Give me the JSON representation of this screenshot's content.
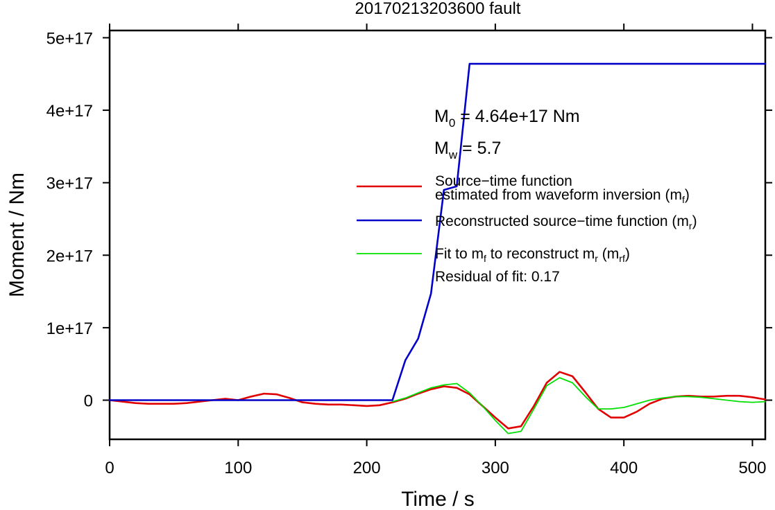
{
  "chart_data": {
    "type": "line",
    "title": "20170213203600 fault",
    "xlabel": "Time / s",
    "ylabel": "Moment / Nm",
    "xlim": [
      0,
      510
    ],
    "ylim": [
      -5.4e+16,
      5.1e+17
    ],
    "x_ticks": [
      0,
      100,
      200,
      300,
      400,
      500
    ],
    "x_tick_labels": [
      "0",
      "100",
      "200",
      "300",
      "400",
      "500"
    ],
    "y_ticks": [
      0,
      1e+17,
      2e+17,
      3e+17,
      4e+17,
      5e+17
    ],
    "y_tick_labels": [
      "0",
      "1e+17",
      "2e+17",
      "3e+17",
      "4e+17",
      "5e+17"
    ],
    "grid": false,
    "legend_position": "right",
    "annotations": {
      "m0_symbol": "M",
      "m0_sub": "0",
      "m0_value": " = 4.64e+17 Nm",
      "mw_symbol": "M",
      "mw_sub": "w",
      "mw_value": " = 5.7",
      "residual": "Residual of fit: 0.17"
    },
    "legend": [
      {
        "key": "mf",
        "color": "#e00000",
        "stroke": 2.6,
        "line1": "Source−time function",
        "line2_pre": "estimated from waveform inversion (m",
        "line2_sub": "f",
        "line2_post": ")"
      },
      {
        "key": "mr",
        "color": "#0000c8",
        "stroke": 2.6,
        "pre": "Reconstructed source−time function (m",
        "sub": "r",
        "post": ")"
      },
      {
        "key": "mrf",
        "color": "#00e000",
        "stroke": 1.8,
        "pre": "Fit to m",
        "sub1": "f",
        "mid": " to reconstruct m",
        "sub2": "r",
        "mid2": " (m",
        "sub3": "rf",
        "post": ")"
      }
    ],
    "series": [
      {
        "name": "Source−time function estimated from waveform inversion (mf)",
        "color": "#e00000",
        "x": [
          0,
          10,
          20,
          30,
          40,
          50,
          60,
          70,
          80,
          90,
          100,
          110,
          120,
          130,
          140,
          150,
          160,
          170,
          180,
          190,
          200,
          210,
          220,
          230,
          240,
          250,
          260,
          270,
          280,
          290,
          300,
          310,
          320,
          330,
          340,
          350,
          360,
          370,
          380,
          390,
          400,
          410,
          420,
          430,
          440,
          450,
          460,
          470,
          480,
          490,
          500,
          510
        ],
        "y": [
          0,
          -2000000000000000.0,
          -4000000000000000.0,
          -5000000000000000.0,
          -5000000000000000.0,
          -5000000000000000.0,
          -4000000000000000.0,
          -2000000000000000.0,
          0,
          2000000000000000.0,
          0,
          5000000000000000.0,
          9000000000000000.0,
          8000000000000000.0,
          3000000000000000.0,
          -3000000000000000.0,
          -5000000000000000.0,
          -6000000000000000.0,
          -6000000000000000.0,
          -7000000000000000.0,
          -8000000000000000.0,
          -7000000000000000.0,
          -3000000000000000.0,
          2000000000000000.0,
          9000000000000000.0,
          1.5e+16,
          1.9e+16,
          1.7e+16,
          8000000000000000.0,
          -8000000000000000.0,
          -2.4e+16,
          -3.9e+16,
          -3.6e+16,
          -8000000000000000.0,
          2.4e+16,
          3.9e+16,
          3.3e+16,
          1.1e+16,
          -1.2e+16,
          -2.4e+16,
          -2.4e+16,
          -1.6e+16,
          -5000000000000000.0,
          2000000000000000.0,
          5000000000000000.0,
          6000000000000000.0,
          5000000000000000.0,
          5000000000000000.0,
          6000000000000000.0,
          6000000000000000.0,
          4000000000000000.0,
          1000000000000000.0
        ]
      },
      {
        "name": "Reconstructed source−time function (mr)",
        "color": "#0000c8",
        "x": [
          0,
          220,
          230,
          240,
          250,
          260,
          270,
          280,
          510
        ],
        "y": [
          0,
          0,
          5.5e+16,
          8.5e+16,
          1.47e+17,
          2.9e+17,
          2.95e+17,
          4.64e+17,
          4.64e+17
        ]
      },
      {
        "name": "Fit to mf to reconstruct mr (mrf)",
        "color": "#00e000",
        "x": [
          220,
          230,
          240,
          250,
          260,
          270,
          280,
          290,
          300,
          310,
          320,
          330,
          340,
          350,
          360,
          370,
          380,
          390,
          400,
          410,
          420,
          430,
          440,
          450,
          460,
          470,
          480,
          490,
          500,
          510
        ],
        "y": [
          -2000000000000000.0,
          3000000000000000.0,
          1e+16,
          1.7e+16,
          2.1e+16,
          2.3e+16,
          1e+16,
          -8000000000000000.0,
          -2.8e+16,
          -4.6e+16,
          -4.3e+16,
          -1.2e+16,
          2e+16,
          3.1e+16,
          2.4e+16,
          5000000000000000.0,
          -1.2e+16,
          -1.2e+16,
          -1e+16,
          -5000000000000000.0,
          0,
          3000000000000000.0,
          5000000000000000.0,
          5000000000000000.0,
          4000000000000000.0,
          2000000000000000.0,
          0,
          -2000000000000000.0,
          -3000000000000000.0,
          -2000000000000000.0
        ]
      }
    ]
  }
}
